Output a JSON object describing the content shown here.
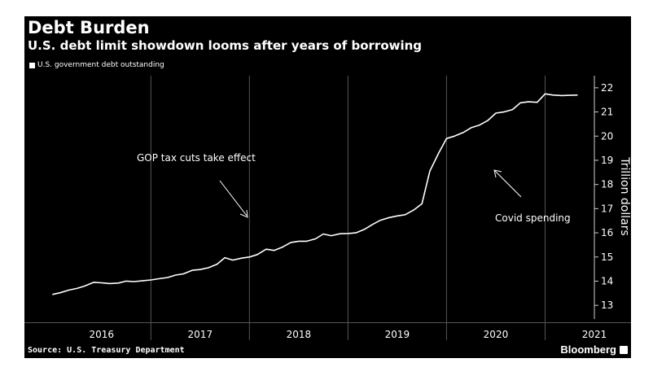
{
  "header": {
    "title": "Debt Burden",
    "subtitle": "U.S. debt limit showdown looms after years of borrowing"
  },
  "footer": {
    "source": "Source: U.S. Treasury Department",
    "brand": "Bloomberg"
  },
  "colors": {
    "background": "#000000",
    "line": "#ffffff",
    "grid": "#555555",
    "text": "#ffffff"
  },
  "chart_data": {
    "type": "line",
    "title": "Debt Burden",
    "subtitle": "U.S. debt limit showdown looms after years of borrowing",
    "ylabel": "Trillion dollars",
    "xlabel": "",
    "ylim": [
      12.5,
      22.5
    ],
    "y_ticks": [
      13,
      14,
      15,
      16,
      17,
      18,
      19,
      20,
      21,
      22
    ],
    "y_axis_side": "right",
    "x_tick_labels": [
      "2016",
      "2017",
      "2018",
      "2019",
      "2020",
      "2021"
    ],
    "grid": "vertical year separators",
    "legend": "top-left",
    "series": [
      {
        "name": "U.S. government debt outstanding",
        "x": [
          2016.0,
          2016.08,
          2016.17,
          2016.25,
          2016.33,
          2016.42,
          2016.5,
          2016.58,
          2016.67,
          2016.75,
          2016.83,
          2016.92,
          2017.0,
          2017.08,
          2017.17,
          2017.25,
          2017.33,
          2017.42,
          2017.5,
          2017.58,
          2017.67,
          2017.75,
          2017.83,
          2017.92,
          2018.0,
          2018.08,
          2018.17,
          2018.25,
          2018.33,
          2018.42,
          2018.5,
          2018.58,
          2018.67,
          2018.75,
          2018.83,
          2018.92,
          2019.0,
          2019.08,
          2019.17,
          2019.25,
          2019.33,
          2019.42,
          2019.5,
          2019.58,
          2019.67,
          2019.75,
          2019.83,
          2019.92,
          2020.0,
          2020.08,
          2020.17,
          2020.25,
          2020.33,
          2020.42,
          2020.5,
          2020.58,
          2020.67,
          2020.75,
          2020.83,
          2020.92,
          2021.0,
          2021.08,
          2021.17,
          2021.25,
          2021.33
        ],
        "values": [
          13.45,
          13.52,
          13.63,
          13.7,
          13.8,
          13.95,
          13.93,
          13.9,
          13.92,
          14.0,
          13.98,
          14.02,
          14.05,
          14.1,
          14.15,
          14.25,
          14.3,
          14.45,
          14.48,
          14.55,
          14.7,
          14.97,
          14.87,
          14.95,
          15.0,
          15.1,
          15.32,
          15.27,
          15.4,
          15.6,
          15.65,
          15.65,
          15.75,
          15.95,
          15.88,
          15.96,
          15.97,
          16.0,
          16.15,
          16.35,
          16.52,
          16.63,
          16.7,
          16.75,
          16.95,
          17.2,
          18.55,
          19.3,
          19.9,
          20.0,
          20.15,
          20.35,
          20.45,
          20.65,
          20.95,
          21.0,
          21.1,
          21.38,
          21.42,
          21.4,
          21.75,
          21.7,
          21.68,
          21.69,
          21.7
        ]
      }
    ],
    "annotations": [
      {
        "text": "GOP tax cuts take effect",
        "x": 2017.93,
        "y": 16.1
      },
      {
        "text": "Covid spending",
        "x": 2020.27,
        "y": 18.6
      }
    ]
  }
}
